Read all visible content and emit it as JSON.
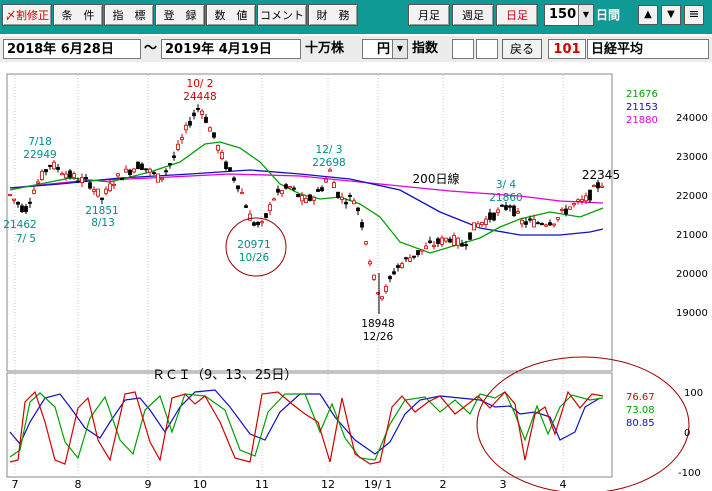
{
  "toolbar": {
    "buttons": [
      {
        "key": "revise",
        "label": "〆割修正",
        "color": "#d00000"
      },
      {
        "key": "condition",
        "label": "条　件",
        "color": "#000000"
      },
      {
        "key": "indicator",
        "label": "指　標",
        "color": "#000000"
      },
      {
        "key": "register",
        "label": "登　録",
        "color": "#000000"
      },
      {
        "key": "value",
        "label": "数　値",
        "color": "#000000"
      },
      {
        "key": "comment",
        "label": "コメント",
        "color": "#000000"
      },
      {
        "key": "finance",
        "label": "財　務",
        "color": "#000000"
      }
    ],
    "period_buttons": [
      {
        "key": "monthly",
        "label": "月足",
        "color": "#000000"
      },
      {
        "key": "weekly",
        "label": "週足",
        "color": "#000000"
      },
      {
        "key": "daily",
        "label": "日足",
        "color": "#d00000"
      }
    ],
    "days_value": "150",
    "days_unit": "日間",
    "arrow_up": "▲",
    "arrow_down": "▼",
    "menu_icon": "≡"
  },
  "datebar": {
    "start_date": "2018年 6月28日",
    "tilde": "～",
    "end_date": "2019年 4月19日",
    "volume_unit": "十万株",
    "currency": "円",
    "index_label": "指数",
    "back_button": "戻る",
    "code": "101",
    "name": "日経平均"
  },
  "chart_data": {
    "type": "candlestick",
    "price_axis": {
      "ticks": [
        24000,
        23000,
        22000,
        21000,
        20000,
        19000
      ],
      "range": [
        18600,
        24900
      ]
    },
    "x_axis_labels": [
      "7",
      "8",
      "9",
      "10",
      "11",
      "12",
      "19/ 1",
      "2",
      "3",
      "4"
    ],
    "ma_values": [
      {
        "value": "21676",
        "color": "#00a000"
      },
      {
        "value": "21153",
        "color": "#1010c0"
      },
      {
        "value": "21880",
        "color": "#e000e0"
      }
    ],
    "annotations": [
      {
        "text": "7/18",
        "color": "#008b8b"
      },
      {
        "text": "22949",
        "color": "#008b8b"
      },
      {
        "text": "21462",
        "color": "#008b8b"
      },
      {
        "text": "7/ 5",
        "color": "#008b8b"
      },
      {
        "text": "21851",
        "color": "#008b8b"
      },
      {
        "text": "8/13",
        "color": "#008b8b"
      },
      {
        "text": "10/ 2",
        "color": "#d00000"
      },
      {
        "text": "24448",
        "color": "#d00000"
      },
      {
        "text": "20971",
        "color": "#008b8b"
      },
      {
        "text": "10/26",
        "color": "#008b8b"
      },
      {
        "text": "12/ 3",
        "color": "#008b8b"
      },
      {
        "text": "22698",
        "color": "#008b8b"
      },
      {
        "text": "200日線",
        "color": "#000000"
      },
      {
        "text": "18948",
        "color": "#000000"
      },
      {
        "text": "12/26",
        "color": "#000000"
      },
      {
        "text": "3/ 4",
        "color": "#008b8b"
      },
      {
        "text": "21860",
        "color": "#008b8b"
      },
      {
        "text": "22345",
        "color": "#000000"
      }
    ],
    "rci": {
      "title": "ＲＣＩ（9、13、25日）",
      "axis_ticks": [
        100,
        0,
        -100
      ],
      "values": [
        {
          "value": "76.67",
          "color": "#d00000"
        },
        {
          "value": "73.08",
          "color": "#00a000"
        },
        {
          "value": "80.85",
          "color": "#1010c0"
        }
      ]
    }
  }
}
